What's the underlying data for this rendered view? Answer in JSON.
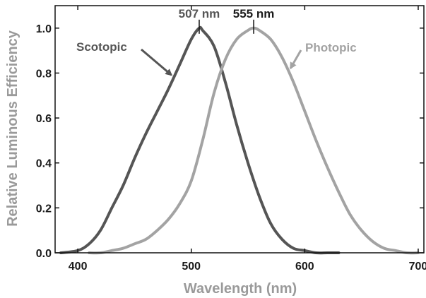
{
  "chart_data": {
    "type": "line",
    "title": "",
    "xlabel": "Wavelength (nm)",
    "ylabel": "Relative Luminous Efficiency",
    "xlim": [
      380,
      705
    ],
    "ylim": [
      0,
      1.1
    ],
    "xticks": [
      400,
      500,
      600,
      700
    ],
    "yticks": [
      0.0,
      0.2,
      0.4,
      0.6,
      0.8,
      1.0
    ],
    "xtick_labels": [
      "400",
      "500",
      "600",
      "700"
    ],
    "ytick_labels": [
      "0.0",
      "0.2",
      "0.4",
      "0.6",
      "0.8",
      "1.0"
    ],
    "grid": false,
    "series": [
      {
        "name": "Scotopic",
        "color": "#555555",
        "x": [
          385,
          400,
          410,
          420,
          430,
          440,
          450,
          460,
          470,
          480,
          490,
          500,
          507,
          510,
          520,
          530,
          540,
          550,
          560,
          570,
          580,
          590,
          600,
          610,
          620,
          630
        ],
        "y": [
          0.0,
          0.01,
          0.04,
          0.1,
          0.2,
          0.3,
          0.42,
          0.53,
          0.63,
          0.73,
          0.84,
          0.95,
          1.0,
          0.99,
          0.92,
          0.76,
          0.57,
          0.4,
          0.25,
          0.13,
          0.06,
          0.02,
          0.01,
          0.0,
          0.0,
          0.0
        ]
      },
      {
        "name": "Photopic",
        "color": "#a3a3a3",
        "x": [
          410,
          420,
          430,
          440,
          450,
          460,
          470,
          480,
          490,
          500,
          510,
          520,
          530,
          540,
          550,
          555,
          560,
          570,
          580,
          590,
          600,
          610,
          620,
          630,
          640,
          650,
          660,
          670,
          680,
          690,
          700
        ],
        "y": [
          0.0,
          0.0,
          0.01,
          0.02,
          0.04,
          0.06,
          0.1,
          0.15,
          0.22,
          0.32,
          0.5,
          0.71,
          0.86,
          0.95,
          0.99,
          1.0,
          0.99,
          0.95,
          0.87,
          0.76,
          0.63,
          0.5,
          0.38,
          0.27,
          0.17,
          0.1,
          0.05,
          0.02,
          0.01,
          0.0,
          0.0
        ]
      }
    ],
    "annotations": [
      {
        "text": "Scotopic",
        "color": "#555555",
        "arrow_to_series": 0,
        "arrow_x": 485
      },
      {
        "text": "Photopic",
        "color": "#a3a3a3",
        "arrow_to_series": 1,
        "arrow_x": 585
      },
      {
        "text": "507 nm",
        "color": "#555555",
        "peak_x": 507
      },
      {
        "text": "555 nm",
        "color": "#1a1a1a",
        "peak_x": 555
      }
    ]
  }
}
